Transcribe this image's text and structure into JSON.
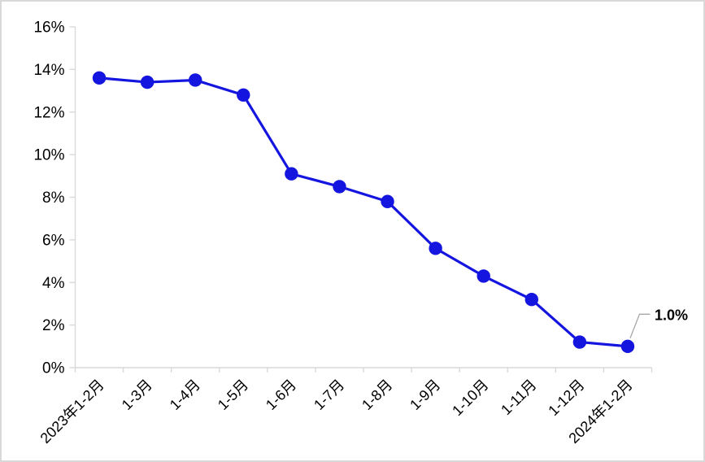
{
  "chart_data": {
    "type": "line",
    "title": "",
    "xlabel": "",
    "ylabel": "",
    "categories": [
      "2023年1-2月",
      "1-3月",
      "1-4月",
      "1-5月",
      "1-6月",
      "1-7月",
      "1-8月",
      "1-9月",
      "1-10月",
      "1-11月",
      "1-12月",
      "2024年1-2月"
    ],
    "values": [
      13.6,
      13.4,
      13.5,
      12.8,
      9.1,
      8.5,
      7.8,
      5.6,
      4.3,
      3.2,
      1.2,
      1.0
    ],
    "ylim": [
      0,
      16
    ],
    "ytick_step": 2,
    "ytick_labels": [
      "0%",
      "2%",
      "4%",
      "6%",
      "8%",
      "10%",
      "12%",
      "14%",
      "16%"
    ],
    "x_label_rotation_deg": 45,
    "grid": false,
    "legend": "none",
    "marker": "circle",
    "annotation": {
      "text": "1.0%",
      "point_index": 11
    },
    "colors": {
      "line": "#1515e0",
      "marker": "#1515e0",
      "axis": "#d9d9d9",
      "tick": "#d9d9d9",
      "leader_line": "#a6a6a6",
      "annotation_text": "#000000",
      "label_text": "#000000",
      "background": "#ffffff",
      "border": "#d9d9d9"
    }
  }
}
